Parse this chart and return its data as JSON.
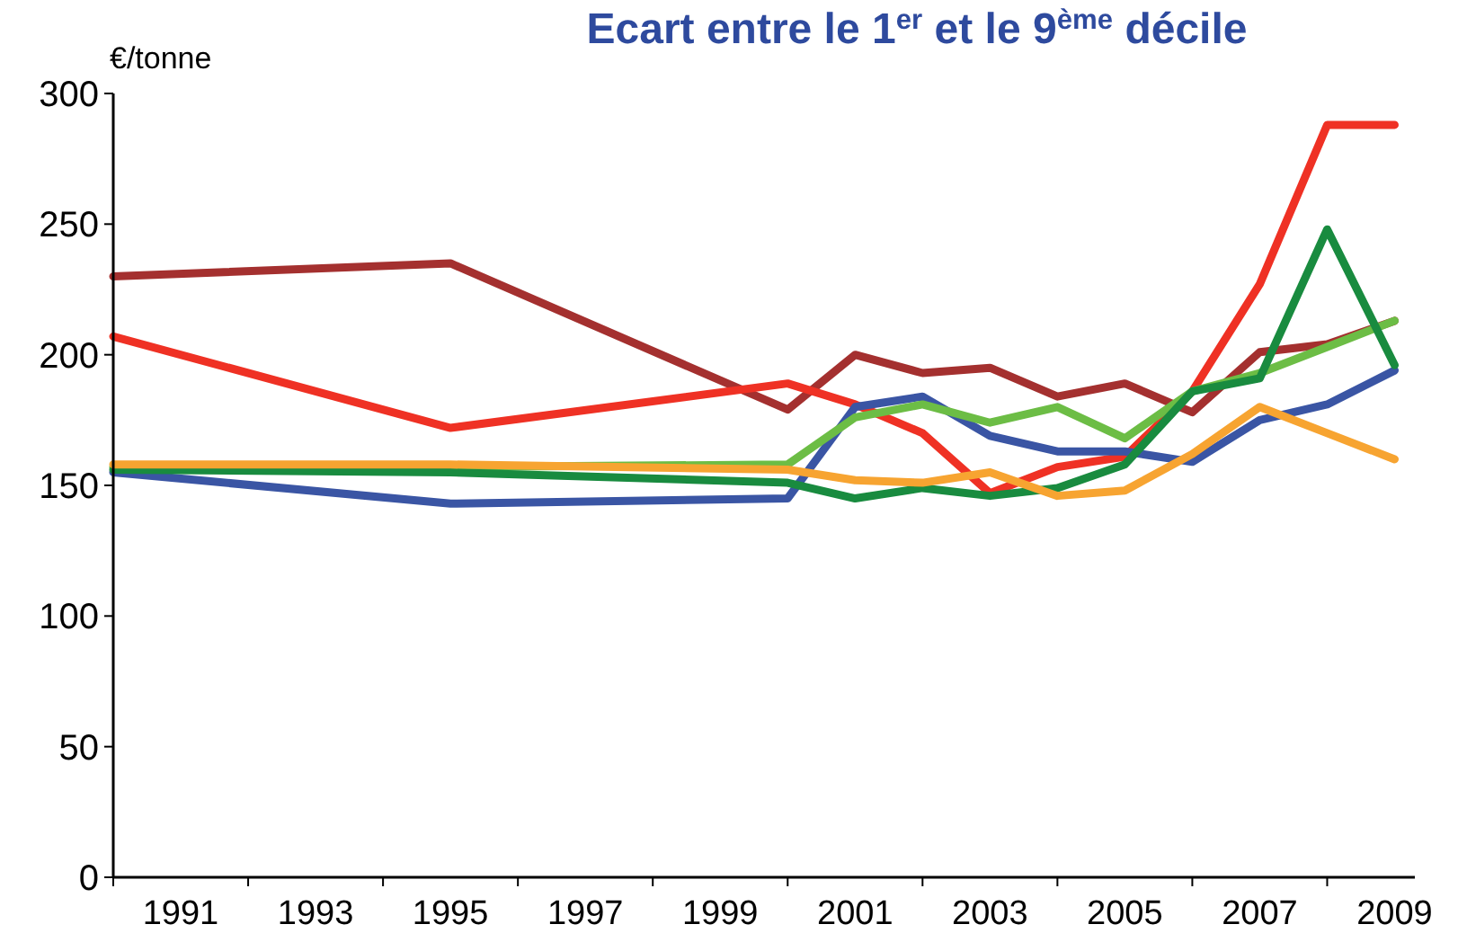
{
  "chart_data": {
    "type": "line",
    "title": "Ecart entre le 1$^{er}$ et le 9$^{ème}$ décile",
    "ylabel": "€/tonne",
    "x": [
      1990,
      1995,
      2000,
      2001,
      2002,
      2003,
      2004,
      2005,
      2006,
      2007,
      2008,
      2009
    ],
    "xlim": [
      1990,
      2009.3
    ],
    "xticks": [
      {
        "value": 1990,
        "label": null
      },
      1991,
      {
        "value": 1992,
        "label": null
      },
      1993,
      {
        "value": 1994,
        "label": null
      },
      1995,
      {
        "value": 1996,
        "label": null
      },
      1997,
      {
        "value": 1998,
        "label": null
      },
      1999,
      {
        "value": 2000,
        "label": null
      },
      2001,
      {
        "value": 2002,
        "label": null
      },
      2003,
      {
        "value": 2004,
        "label": null
      },
      2005,
      {
        "value": 2006,
        "label": null
      },
      2007,
      {
        "value": 2008,
        "label": null
      },
      2009
    ],
    "ylim": [
      0,
      300
    ],
    "yticks": [
      0,
      50,
      100,
      150,
      200,
      250,
      300
    ],
    "series": [
      {
        "color": "#a4302f",
        "values": [
          230,
          235,
          179,
          200,
          193,
          195,
          184,
          189,
          178,
          201,
          204,
          213
        ]
      },
      {
        "color": "#ef3124",
        "values": [
          207,
          172,
          189,
          181,
          170,
          147,
          157,
          161,
          186,
          227,
          288,
          288
        ]
      },
      {
        "color": "#3a55a4",
        "values": [
          155,
          143,
          145,
          180,
          184,
          169,
          163,
          163,
          159,
          175,
          181,
          194
        ]
      },
      {
        "color": "#6cbd45",
        "values": [
          157,
          157,
          158,
          176,
          181,
          174,
          180,
          168,
          186,
          193,
          203,
          213
        ]
      },
      {
        "color": "#198b3f",
        "values": [
          156,
          155,
          151,
          145,
          149,
          146,
          149,
          158,
          186,
          191,
          248,
          196
        ]
      },
      {
        "color": "#f7a431",
        "values": [
          158,
          158,
          156,
          152,
          151,
          155,
          146,
          148,
          162,
          180,
          170,
          160
        ]
      }
    ]
  }
}
